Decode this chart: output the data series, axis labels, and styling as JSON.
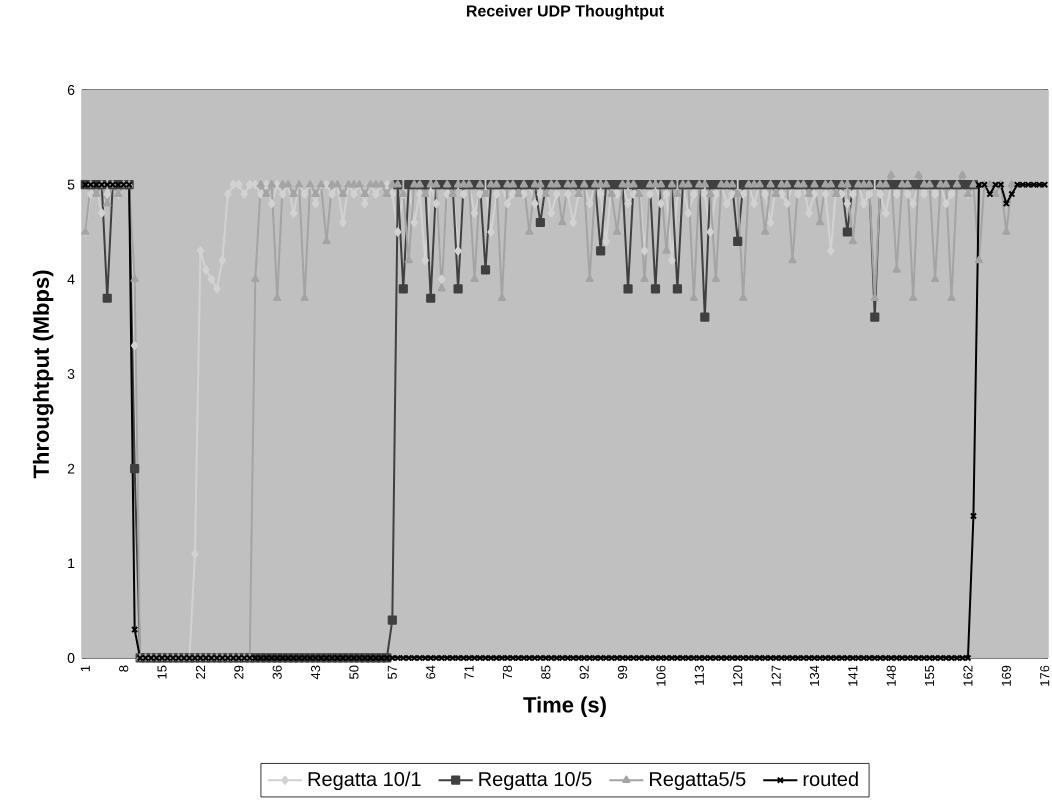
{
  "chart_data": {
    "type": "line",
    "title": "Receiver UDP Thoughtput",
    "xlabel": "Time (s)",
    "ylabel": "Throughtput (Mbps)",
    "categories": [
      "1",
      null,
      null,
      null,
      null,
      null,
      null,
      "8",
      null,
      null,
      null,
      null,
      null,
      null,
      "15",
      null,
      null,
      null,
      null,
      null,
      null,
      "22",
      null,
      null,
      null,
      null,
      null,
      null,
      "29",
      null,
      null,
      null,
      null,
      null,
      null,
      "36",
      null,
      null,
      null,
      null,
      null,
      null,
      "43",
      null,
      null,
      null,
      null,
      null,
      null,
      "50",
      null,
      null,
      null,
      null,
      null,
      null,
      "57",
      null,
      null,
      null,
      null,
      null,
      null,
      "64",
      null,
      null,
      null,
      null,
      null,
      null,
      "71",
      null,
      null,
      null,
      null,
      null,
      null,
      "78",
      null,
      null,
      null,
      null,
      null,
      null,
      "85",
      null,
      null,
      null,
      null,
      null,
      null,
      "92",
      null,
      null,
      null,
      null,
      null,
      null,
      "99",
      null,
      null,
      null,
      null,
      null,
      null,
      "106",
      null,
      null,
      null,
      null,
      null,
      null,
      "113",
      null,
      null,
      null,
      null,
      null,
      null,
      "120",
      null,
      null,
      null,
      null,
      null,
      null,
      "127",
      null,
      null,
      null,
      null,
      null,
      null,
      "134",
      null,
      null,
      null,
      null,
      null,
      null,
      "141",
      null,
      null,
      null,
      null,
      null,
      null,
      "148",
      null,
      null,
      null,
      null,
      null,
      null,
      "155",
      null,
      null,
      null,
      null,
      null,
      null,
      "162",
      null,
      null,
      null,
      null,
      null,
      null,
      "169",
      null,
      null,
      null,
      null,
      null,
      null,
      "176"
    ],
    "ylim": [
      0,
      6
    ],
    "yticks": [
      0,
      1,
      2,
      3,
      4,
      5,
      6
    ],
    "grid": "y",
    "legend": "bottom",
    "series": [
      {
        "name": "Regatta 10/1",
        "color": "#d2d2d2",
        "marker": "diamond",
        "values": [
          4.5,
          4.9,
          5,
          4.7,
          4.9,
          5,
          4.9,
          5,
          5,
          3.3,
          0,
          0,
          0,
          0,
          0,
          0,
          0,
          0,
          0,
          0,
          1.1,
          4.3,
          4.1,
          4.0,
          3.9,
          4.2,
          4.9,
          5,
          5,
          4.9,
          5,
          5,
          4.9,
          5,
          4.8,
          5,
          4.9,
          5,
          4.7,
          5,
          4.9,
          5,
          4.8,
          5,
          5,
          4.9,
          5,
          4.6,
          5,
          4.9,
          5,
          4.8,
          5,
          4.9,
          5,
          5,
          4.9,
          4.5,
          4.9,
          5,
          4.6,
          4.9,
          4.2,
          5,
          4.8,
          4.0,
          4.9,
          5,
          4.3,
          4.9,
          5,
          4.7,
          4.9,
          5,
          4.5,
          4.9,
          5,
          4.8,
          4.9,
          5,
          4.9,
          5,
          4.8,
          4.9,
          5,
          4.7,
          4.9,
          5,
          4.9,
          4.6,
          4.9,
          5,
          4.8,
          5,
          4.9,
          4.4,
          5,
          4.9,
          5,
          4.8,
          4.9,
          5,
          4.3,
          4.9,
          5,
          4.8,
          4.9,
          4.2,
          4.9,
          5,
          4.7,
          4.9,
          5,
          4.9,
          4.5,
          4.9,
          5,
          4.8,
          4.9,
          5,
          4.9,
          5,
          4.8,
          5,
          4.9,
          4.6,
          5,
          4.9,
          4.8,
          5,
          4.9,
          5,
          4.7,
          4.9,
          5,
          4.9,
          4.3,
          5,
          4.9,
          4.8,
          4.9,
          5,
          4.8,
          4.9,
          5,
          4.9,
          4.7,
          5,
          4.9,
          5,
          4.9,
          4.8,
          5,
          4.9,
          5,
          4.9,
          5,
          4.8,
          4.9,
          5,
          5,
          4.9,
          5,
          null,
          null,
          null,
          null,
          null,
          null,
          null,
          null,
          null,
          null,
          null,
          null,
          null
        ]
      },
      {
        "name": "Regatta 10/5",
        "color": "#404040",
        "marker": "square",
        "values": [
          5,
          5,
          5,
          5,
          3.8,
          5,
          5,
          5,
          5,
          2.0,
          0,
          0,
          0,
          0,
          0,
          0,
          0,
          0,
          0,
          0,
          0,
          0,
          0,
          0,
          0,
          0,
          0,
          0,
          0,
          0,
          0,
          0,
          0,
          0,
          0,
          0,
          0,
          0,
          0,
          0,
          0,
          0,
          0,
          0,
          0,
          0,
          0,
          0,
          0,
          0,
          0,
          0,
          0,
          0,
          0,
          0,
          0.4,
          5,
          3.9,
          5,
          5,
          5,
          5,
          3.8,
          5,
          5,
          5,
          5,
          3.9,
          5,
          5,
          5,
          5,
          4.1,
          5,
          5,
          5,
          5,
          5,
          5,
          5,
          5,
          5,
          4.6,
          5,
          5,
          5,
          5,
          5,
          5,
          5,
          5,
          5,
          5,
          4.3,
          5,
          5,
          5,
          5,
          3.9,
          5,
          5,
          5,
          5,
          3.9,
          5,
          5,
          5,
          3.9,
          5,
          5,
          5,
          5,
          3.6,
          5,
          5,
          5,
          5,
          5,
          4.4,
          5,
          5,
          5,
          5,
          5,
          5,
          5,
          5,
          5,
          5,
          5,
          5,
          5,
          5,
          5,
          5,
          5,
          5,
          5,
          4.5,
          5,
          5,
          5,
          5,
          3.6,
          5,
          5,
          5,
          5,
          5,
          5,
          5,
          5,
          5,
          5,
          5,
          5,
          5,
          5,
          5,
          5,
          5,
          5,
          null,
          null,
          null,
          null,
          null,
          null,
          null,
          null,
          null,
          null,
          null,
          null,
          null
        ]
      },
      {
        "name": "Regatta5/5",
        "color": "#a4a4a4",
        "marker": "triangle",
        "values": [
          4.5,
          5,
          4.9,
          5,
          4.8,
          5,
          4.9,
          5,
          5,
          4.0,
          0,
          0,
          0,
          0,
          0,
          0,
          0,
          0,
          0,
          0,
          0,
          0,
          0,
          0,
          0,
          0,
          0,
          0,
          0,
          0,
          0,
          4.0,
          5,
          4.9,
          5,
          3.8,
          5,
          5,
          4.9,
          5,
          3.8,
          5,
          4.9,
          5,
          4.4,
          5,
          5,
          4.9,
          5,
          5,
          5,
          4.9,
          5,
          5,
          5,
          4.9,
          5,
          5,
          4.9,
          4.2,
          5,
          5,
          4.9,
          5,
          5,
          3.9,
          5,
          4.9,
          5,
          5,
          5,
          4.0,
          5,
          4.9,
          5,
          5,
          3.8,
          5,
          5,
          4.9,
          5,
          4.5,
          5,
          5,
          4.9,
          5,
          5,
          4.6,
          5,
          5,
          4.9,
          5,
          4.0,
          5,
          5,
          5,
          4.9,
          4.5,
          5,
          5,
          5,
          4.9,
          4.0,
          5,
          5,
          5,
          4.3,
          5,
          4.9,
          5,
          5,
          3.8,
          5,
          5,
          4.9,
          4.0,
          5,
          5,
          5,
          4.9,
          3.8,
          5,
          5,
          5,
          4.5,
          5,
          4.9,
          5,
          5,
          4.2,
          5,
          5,
          4.9,
          5,
          4.6,
          5,
          5,
          4.9,
          5,
          5,
          4.4,
          5,
          5,
          5,
          3.8,
          5,
          5,
          5.1,
          4.1,
          5,
          5,
          3.8,
          5.1,
          5,
          5,
          4.0,
          5,
          5,
          3.8,
          5,
          5.1,
          4.9,
          5,
          4.2,
          5,
          5,
          4.9,
          5,
          4.5,
          5,
          null,
          null,
          null,
          null,
          null,
          null
        ]
      },
      {
        "name": "routed",
        "color": "#000000",
        "marker": "cross",
        "values": [
          5,
          5,
          5,
          5,
          5,
          5,
          5,
          5,
          5,
          0.3,
          0,
          0,
          0,
          0,
          0,
          0,
          0,
          0,
          0,
          0,
          0,
          0,
          0,
          0,
          0,
          0,
          0,
          0,
          0,
          0,
          0,
          0,
          0,
          0,
          0,
          0,
          0,
          0,
          0,
          0,
          0,
          0,
          0,
          0,
          0,
          0,
          0,
          0,
          0,
          0,
          0,
          0,
          0,
          0,
          0,
          0,
          0,
          0,
          0,
          0,
          0,
          0,
          0,
          0,
          0,
          0,
          0,
          0,
          0,
          0,
          0,
          0,
          0,
          0,
          0,
          0,
          0,
          0,
          0,
          0,
          0,
          0,
          0,
          0,
          0,
          0,
          0,
          0,
          0,
          0,
          0,
          0,
          0,
          0,
          0,
          0,
          0,
          0,
          0,
          0,
          0,
          0,
          0,
          0,
          0,
          0,
          0,
          0,
          0,
          0,
          0,
          0,
          0,
          0,
          0,
          0,
          0,
          0,
          0,
          0,
          0,
          0,
          0,
          0,
          0,
          0,
          0,
          0,
          0,
          0,
          0,
          0,
          0,
          0,
          0,
          0,
          0,
          0,
          0,
          0,
          0,
          0,
          0,
          0,
          0,
          0,
          0,
          0,
          0,
          0,
          0,
          0,
          0,
          0,
          0,
          0,
          0,
          0,
          0,
          0,
          0,
          0,
          1.5,
          5,
          5,
          4.9,
          5,
          5,
          4.8,
          4.9,
          5,
          5,
          5,
          5,
          5,
          5
        ]
      }
    ]
  }
}
